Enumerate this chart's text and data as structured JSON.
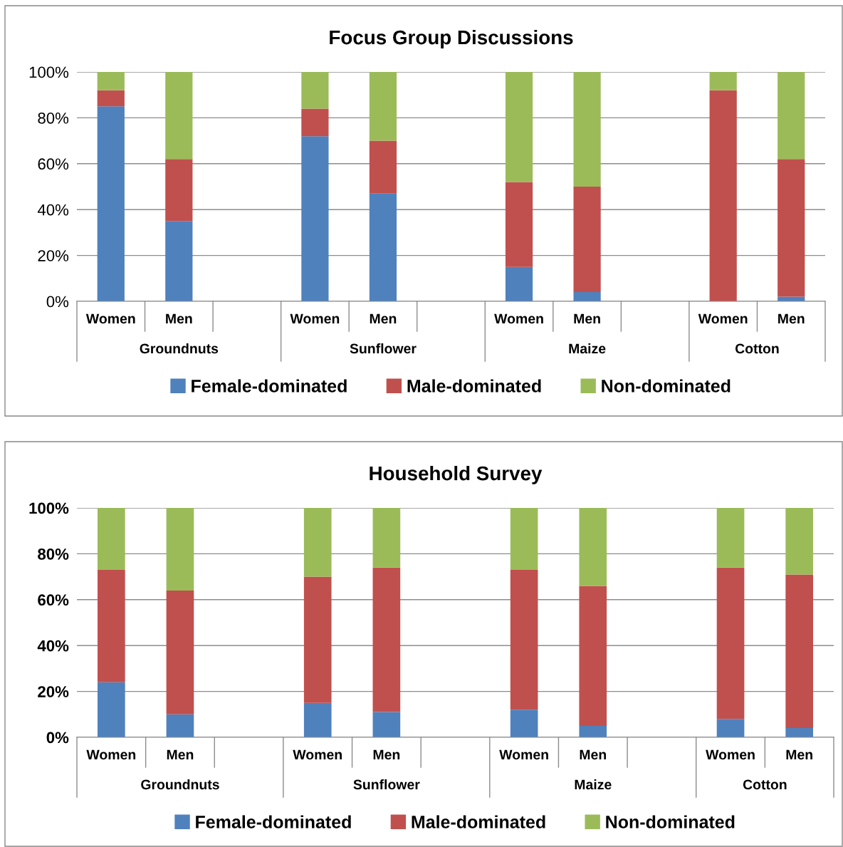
{
  "chart_data": [
    {
      "type": "bar",
      "stacked": true,
      "title": "Focus Group Discussions",
      "categories": [
        "Women",
        "Men",
        null,
        "Women",
        "Men",
        null,
        "Women",
        "Men",
        null,
        "Women",
        "Men"
      ],
      "annotations": [
        "Groundnuts",
        "Sunflower",
        "Maize",
        "Cotton"
      ],
      "series": [
        {
          "name": "Female-dominated",
          "color": "#4f81bd",
          "values": [
            85,
            35,
            null,
            72,
            47,
            null,
            15,
            4,
            null,
            0,
            2
          ]
        },
        {
          "name": "Male-dominated",
          "color": "#c0504d",
          "values": [
            7,
            27,
            null,
            12,
            23,
            null,
            37,
            46,
            null,
            92,
            60
          ]
        },
        {
          "name": "Non-dominated",
          "color": "#9bbb59",
          "values": [
            8,
            38,
            null,
            16,
            30,
            null,
            48,
            50,
            null,
            8,
            38
          ]
        }
      ],
      "ylim": [
        0,
        100
      ],
      "yticks": [
        {
          "value": 0,
          "label": "0%"
        },
        {
          "value": 20,
          "label": "20%"
        },
        {
          "value": 40,
          "label": "40%"
        },
        {
          "value": 60,
          "label": "60%"
        },
        {
          "value": 80,
          "label": "80%"
        },
        {
          "value": 100,
          "label": "100%"
        }
      ],
      "grid": "y",
      "legend": "bottom"
    },
    {
      "type": "bar",
      "stacked": true,
      "title": "Household Survey",
      "categories": [
        "Women",
        "Men",
        null,
        "Women",
        "Men",
        null,
        "Women",
        "Men",
        null,
        "Women",
        "Men"
      ],
      "annotations": [
        "Groundnuts",
        "Sunflower",
        "Maize",
        "Cotton"
      ],
      "series": [
        {
          "name": "Female-dominated",
          "color": "#4f81bd",
          "values": [
            24,
            10,
            null,
            15,
            11,
            null,
            12,
            5,
            null,
            8,
            4
          ]
        },
        {
          "name": "Male-dominated",
          "color": "#c0504d",
          "values": [
            49,
            54,
            null,
            55,
            63,
            null,
            61,
            61,
            null,
            66,
            67
          ]
        },
        {
          "name": "Non-dominated",
          "color": "#9bbb59",
          "values": [
            27,
            36,
            null,
            30,
            26,
            null,
            27,
            34,
            null,
            26,
            29
          ]
        }
      ],
      "ylim": [
        0,
        100
      ],
      "yticks": [
        {
          "value": 0,
          "label": "0%"
        },
        {
          "value": 20,
          "label": "20%"
        },
        {
          "value": 40,
          "label": "40%"
        },
        {
          "value": 60,
          "label": "60%"
        },
        {
          "value": 80,
          "label": "80%"
        },
        {
          "value": 100,
          "label": "100%"
        }
      ],
      "grid": "y",
      "legend": "bottom"
    }
  ]
}
